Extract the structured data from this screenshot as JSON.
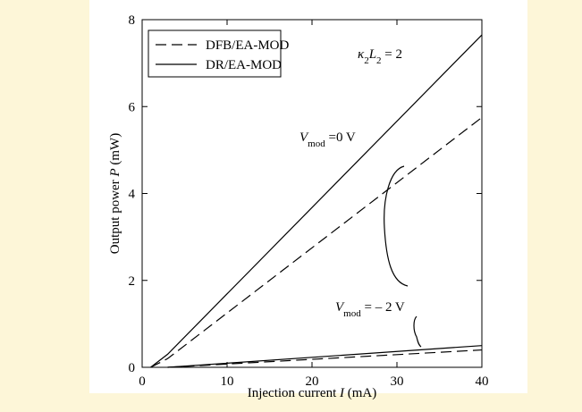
{
  "chart_data": {
    "type": "line",
    "xlabel": [
      {
        "text": "Injection current "
      },
      {
        "text": "I",
        "italic": true
      },
      {
        "text": " (mA)"
      }
    ],
    "ylabel": [
      {
        "text": "Output power "
      },
      {
        "text": "P",
        "italic": true
      },
      {
        "text": " (mW)"
      }
    ],
    "xlim": [
      0,
      40
    ],
    "xticks": [
      0,
      10,
      20,
      30,
      40
    ],
    "ylim": [
      0,
      8
    ],
    "yticks": [
      0,
      2,
      4,
      6,
      8
    ],
    "series": [
      {
        "name": "DFB/EA-MOD",
        "dashed": true,
        "color": "#000000",
        "x": [
          1,
          3,
          40
        ],
        "y": [
          0,
          0.2,
          5.75
        ]
      },
      {
        "name": "DR/EA-MOD",
        "dashed": false,
        "color": "#000000",
        "x": [
          1,
          3,
          40
        ],
        "y": [
          0,
          0.3,
          7.65
        ]
      },
      {
        "name": "DFB/EA-MOD",
        "dashed": true,
        "color": "#000000",
        "x": [
          3,
          40
        ],
        "y": [
          0,
          0.4
        ]
      },
      {
        "name": "DR/EA-MOD",
        "dashed": false,
        "color": "#000000",
        "x": [
          3,
          40
        ],
        "y": [
          0,
          0.5
        ]
      }
    ],
    "annotations": [
      [
        {
          "text": "κ",
          "italic": true
        },
        {
          "text": "2",
          "sub": true
        },
        {
          "text": "L",
          "italic": true
        },
        {
          "text": "2",
          "sub": true
        },
        {
          "text": " = 2"
        }
      ],
      [
        {
          "text": "V",
          "italic": true
        },
        {
          "text": "mod",
          "sub": true
        },
        {
          "text": " =0 V"
        }
      ],
      [
        {
          "text": "V",
          "italic": true
        },
        {
          "text": "mod",
          "sub": true
        },
        {
          "text": " = – 2 V"
        }
      ]
    ]
  }
}
